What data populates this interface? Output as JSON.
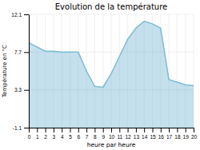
{
  "chart_data": {
    "type": "area",
    "title": "Evolution de la température",
    "x_label": "heure par heure",
    "y_label": "Température en °C",
    "x": [
      0,
      1,
      2,
      3,
      4,
      5,
      6,
      7,
      8,
      9,
      10,
      11,
      12,
      13,
      14,
      15,
      16,
      17,
      18,
      19,
      20
    ],
    "values": [
      8.8,
      8.3,
      7.8,
      7.8,
      7.7,
      7.7,
      7.7,
      5.5,
      3.7,
      3.6,
      5.2,
      7.2,
      9.2,
      10.5,
      11.3,
      11.0,
      10.5,
      4.5,
      4.2,
      3.9,
      3.8
    ],
    "color": "#7bbbd4",
    "xlim": [
      0,
      20
    ],
    "xticks": [
      0,
      1,
      2,
      3,
      4,
      5,
      6,
      7,
      8,
      9,
      10,
      11,
      12,
      13,
      14,
      15,
      16,
      17,
      18,
      19,
      20
    ],
    "ylim": [
      -1.1,
      12.1
    ],
    "yticks": [
      -1.1,
      3.3,
      7.7,
      12.1
    ],
    "grid": true
  }
}
